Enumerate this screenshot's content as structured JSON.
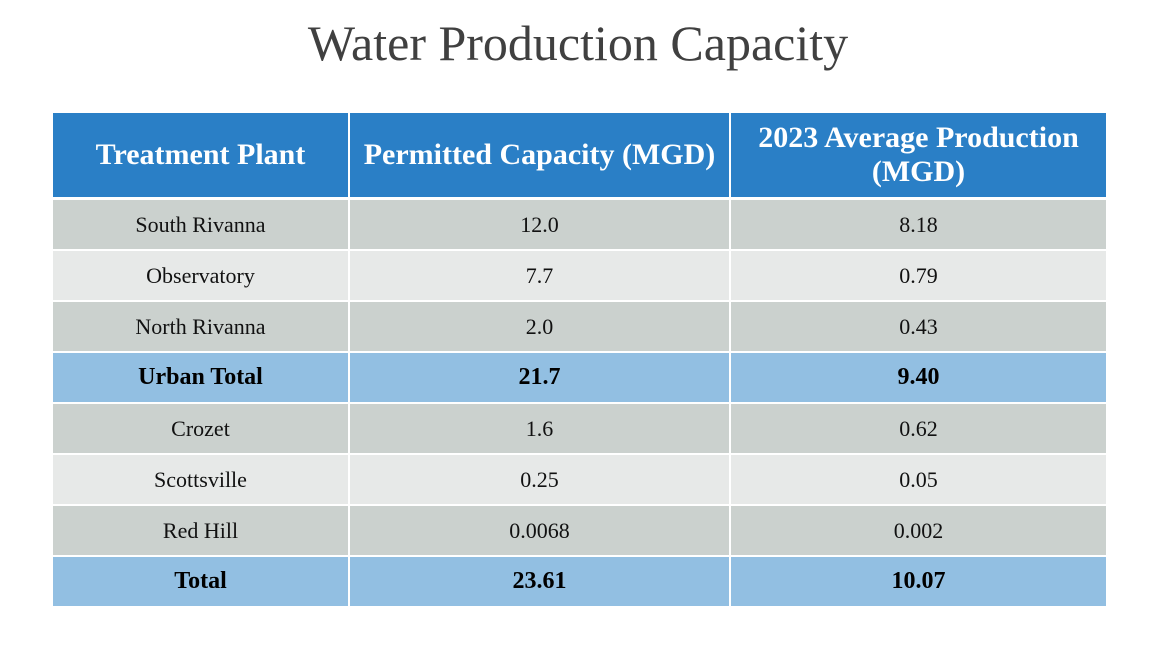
{
  "title": "Water Production Capacity",
  "table": {
    "headers": [
      "Treatment Plant",
      "Permitted Capacity (MGD)",
      "2023 Average Production (MGD)"
    ],
    "rows": [
      {
        "plant": "South Rivanna",
        "capacity": "12.0",
        "production": "8.18",
        "style": "dark"
      },
      {
        "plant": "Observatory",
        "capacity": "7.7",
        "production": "0.79",
        "style": "light"
      },
      {
        "plant": "North Rivanna",
        "capacity": "2.0",
        "production": "0.43",
        "style": "dark"
      },
      {
        "plant": "Urban Total",
        "capacity": "21.7",
        "production": "9.40",
        "style": "total"
      },
      {
        "plant": "Crozet",
        "capacity": "1.6",
        "production": "0.62",
        "style": "dark"
      },
      {
        "plant": "Scottsville",
        "capacity": "0.25",
        "production": "0.05",
        "style": "light"
      },
      {
        "plant": "Red Hill",
        "capacity": "0.0068",
        "production": "0.002",
        "style": "dark"
      },
      {
        "plant": "Total",
        "capacity": "23.61",
        "production": "10.07",
        "style": "total"
      }
    ]
  },
  "colors": {
    "header_bg": "#2a7fc6",
    "row_dark": "#cbd1ce",
    "row_light": "#e7e9e8",
    "row_total": "#92bfe2",
    "title_text": "#404040"
  }
}
